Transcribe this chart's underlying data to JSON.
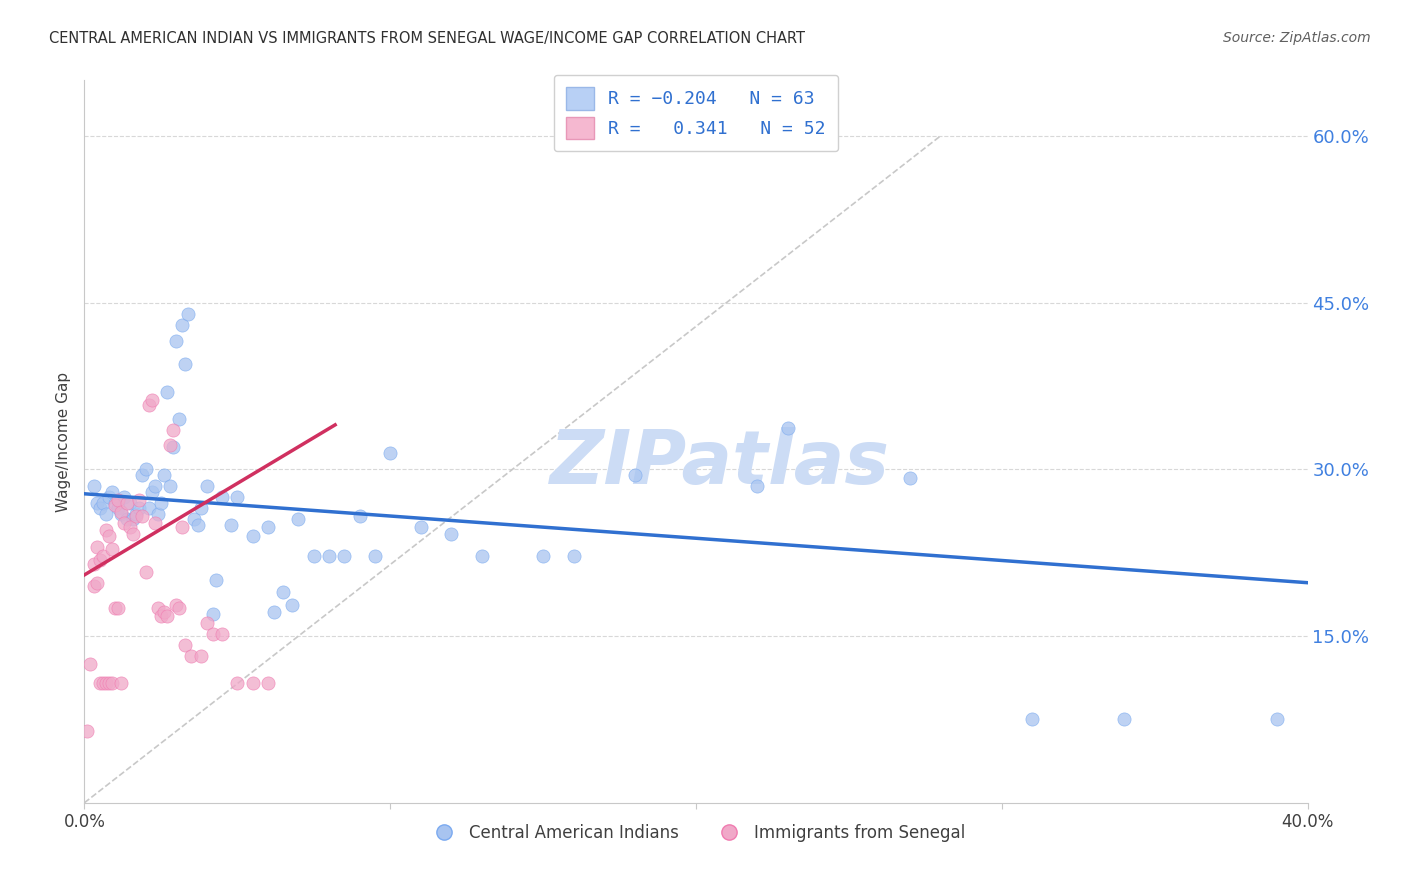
{
  "title": "CENTRAL AMERICAN INDIAN VS IMMIGRANTS FROM SENEGAL WAGE/INCOME GAP CORRELATION CHART",
  "source": "Source: ZipAtlas.com",
  "ylabel": "Wage/Income Gap",
  "ytick_values": [
    0.15,
    0.3,
    0.45,
    0.6
  ],
  "ytick_labels": [
    "15.0%",
    "30.0%",
    "45.0%",
    "60.0%"
  ],
  "xlim": [
    0.0,
    0.4
  ],
  "ylim": [
    0.0,
    0.65
  ],
  "watermark": "ZIPatlas",
  "blue_scatter": [
    [
      0.003,
      0.285
    ],
    [
      0.004,
      0.27
    ],
    [
      0.005,
      0.265
    ],
    [
      0.006,
      0.27
    ],
    [
      0.007,
      0.26
    ],
    [
      0.008,
      0.275
    ],
    [
      0.009,
      0.28
    ],
    [
      0.01,
      0.27
    ],
    [
      0.011,
      0.265
    ],
    [
      0.012,
      0.26
    ],
    [
      0.013,
      0.275
    ],
    [
      0.014,
      0.255
    ],
    [
      0.015,
      0.27
    ],
    [
      0.016,
      0.255
    ],
    [
      0.017,
      0.26
    ],
    [
      0.018,
      0.265
    ],
    [
      0.019,
      0.295
    ],
    [
      0.02,
      0.3
    ],
    [
      0.021,
      0.265
    ],
    [
      0.022,
      0.28
    ],
    [
      0.023,
      0.285
    ],
    [
      0.024,
      0.26
    ],
    [
      0.025,
      0.27
    ],
    [
      0.026,
      0.295
    ],
    [
      0.027,
      0.37
    ],
    [
      0.028,
      0.285
    ],
    [
      0.029,
      0.32
    ],
    [
      0.03,
      0.415
    ],
    [
      0.031,
      0.345
    ],
    [
      0.032,
      0.43
    ],
    [
      0.033,
      0.395
    ],
    [
      0.034,
      0.44
    ],
    [
      0.036,
      0.255
    ],
    [
      0.037,
      0.25
    ],
    [
      0.038,
      0.265
    ],
    [
      0.04,
      0.285
    ],
    [
      0.042,
      0.17
    ],
    [
      0.043,
      0.2
    ],
    [
      0.045,
      0.275
    ],
    [
      0.048,
      0.25
    ],
    [
      0.05,
      0.275
    ],
    [
      0.055,
      0.24
    ],
    [
      0.06,
      0.248
    ],
    [
      0.062,
      0.172
    ],
    [
      0.065,
      0.19
    ],
    [
      0.068,
      0.178
    ],
    [
      0.07,
      0.255
    ],
    [
      0.075,
      0.222
    ],
    [
      0.08,
      0.222
    ],
    [
      0.085,
      0.222
    ],
    [
      0.09,
      0.258
    ],
    [
      0.095,
      0.222
    ],
    [
      0.1,
      0.315
    ],
    [
      0.11,
      0.248
    ],
    [
      0.12,
      0.242
    ],
    [
      0.13,
      0.222
    ],
    [
      0.15,
      0.222
    ],
    [
      0.16,
      0.222
    ],
    [
      0.18,
      0.295
    ],
    [
      0.22,
      0.285
    ],
    [
      0.23,
      0.337
    ],
    [
      0.27,
      0.292
    ],
    [
      0.31,
      0.075
    ],
    [
      0.34,
      0.075
    ],
    [
      0.39,
      0.075
    ]
  ],
  "pink_scatter": [
    [
      0.001,
      0.065
    ],
    [
      0.002,
      0.125
    ],
    [
      0.003,
      0.215
    ],
    [
      0.004,
      0.23
    ],
    [
      0.005,
      0.218
    ],
    [
      0.006,
      0.222
    ],
    [
      0.007,
      0.245
    ],
    [
      0.008,
      0.24
    ],
    [
      0.009,
      0.228
    ],
    [
      0.01,
      0.268
    ],
    [
      0.011,
      0.272
    ],
    [
      0.012,
      0.262
    ],
    [
      0.013,
      0.252
    ],
    [
      0.014,
      0.27
    ],
    [
      0.015,
      0.248
    ],
    [
      0.016,
      0.242
    ],
    [
      0.017,
      0.258
    ],
    [
      0.018,
      0.272
    ],
    [
      0.019,
      0.258
    ],
    [
      0.02,
      0.208
    ],
    [
      0.021,
      0.358
    ],
    [
      0.022,
      0.362
    ],
    [
      0.023,
      0.252
    ],
    [
      0.024,
      0.175
    ],
    [
      0.025,
      0.168
    ],
    [
      0.026,
      0.172
    ],
    [
      0.027,
      0.168
    ],
    [
      0.028,
      0.322
    ],
    [
      0.029,
      0.335
    ],
    [
      0.03,
      0.178
    ],
    [
      0.031,
      0.175
    ],
    [
      0.032,
      0.248
    ],
    [
      0.033,
      0.142
    ],
    [
      0.035,
      0.132
    ],
    [
      0.038,
      0.132
    ],
    [
      0.04,
      0.162
    ],
    [
      0.042,
      0.152
    ],
    [
      0.045,
      0.152
    ],
    [
      0.05,
      0.108
    ],
    [
      0.055,
      0.108
    ],
    [
      0.06,
      0.108
    ],
    [
      0.003,
      0.195
    ],
    [
      0.004,
      0.198
    ],
    [
      0.005,
      0.108
    ],
    [
      0.006,
      0.108
    ],
    [
      0.007,
      0.108
    ],
    [
      0.008,
      0.108
    ],
    [
      0.009,
      0.108
    ],
    [
      0.01,
      0.175
    ],
    [
      0.011,
      0.175
    ],
    [
      0.012,
      0.108
    ]
  ],
  "blue_line_x": [
    0.0,
    0.4
  ],
  "blue_line_y": [
    0.278,
    0.198
  ],
  "pink_line_x": [
    0.0,
    0.082
  ],
  "pink_line_y": [
    0.205,
    0.34
  ],
  "diag_line_x": [
    0.0,
    0.28
  ],
  "diag_line_y": [
    0.0,
    0.6
  ],
  "scatter_color_blue": "#a8c4f0",
  "scatter_color_pink": "#f0a8c8",
  "scatter_edge_blue": "#7baaf0",
  "scatter_edge_pink": "#f07bb0",
  "line_color_blue": "#3070d0",
  "line_color_pink": "#d03060",
  "diag_line_color": "#c8c8c8",
  "background_color": "#ffffff",
  "grid_color": "#d8d8d8",
  "title_color": "#303030",
  "source_color": "#606060",
  "watermark_color": "#ccdcf5",
  "right_tick_color": "#4080e0",
  "legend_patch_blue": "#b8d0f5",
  "legend_patch_pink": "#f5b8d0",
  "legend_text_color": "#3070d0"
}
